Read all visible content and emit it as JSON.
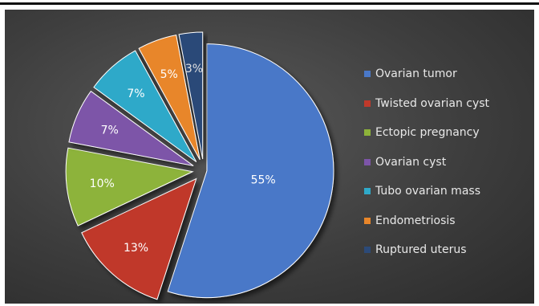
{
  "chart_data": {
    "type": "pie",
    "title": "",
    "legend_position": "right",
    "slices": [
      {
        "label": "Ovarian tumor",
        "value": 55,
        "display": "55%",
        "color": "#4a78c8"
      },
      {
        "label": "Twisted ovarian cyst",
        "value": 13,
        "display": "13%",
        "color": "#c0392b"
      },
      {
        "label": "Ectopic pregnancy",
        "value": 10,
        "display": "10%",
        "color": "#8db33a"
      },
      {
        "label": "Ovarian cyst",
        "value": 7,
        "display": "7%",
        "color": "#7d55a8"
      },
      {
        "label": "Tubo ovarian mass",
        "value": 7,
        "display": "7%",
        "color": "#2fa9c9"
      },
      {
        "label": "Endometriosis",
        "value": 5,
        "display": "5%",
        "color": "#e8862a"
      },
      {
        "label": "Ruptured uterus",
        "value": 3,
        "display": "3%",
        "color": "#2c4a78"
      }
    ]
  }
}
